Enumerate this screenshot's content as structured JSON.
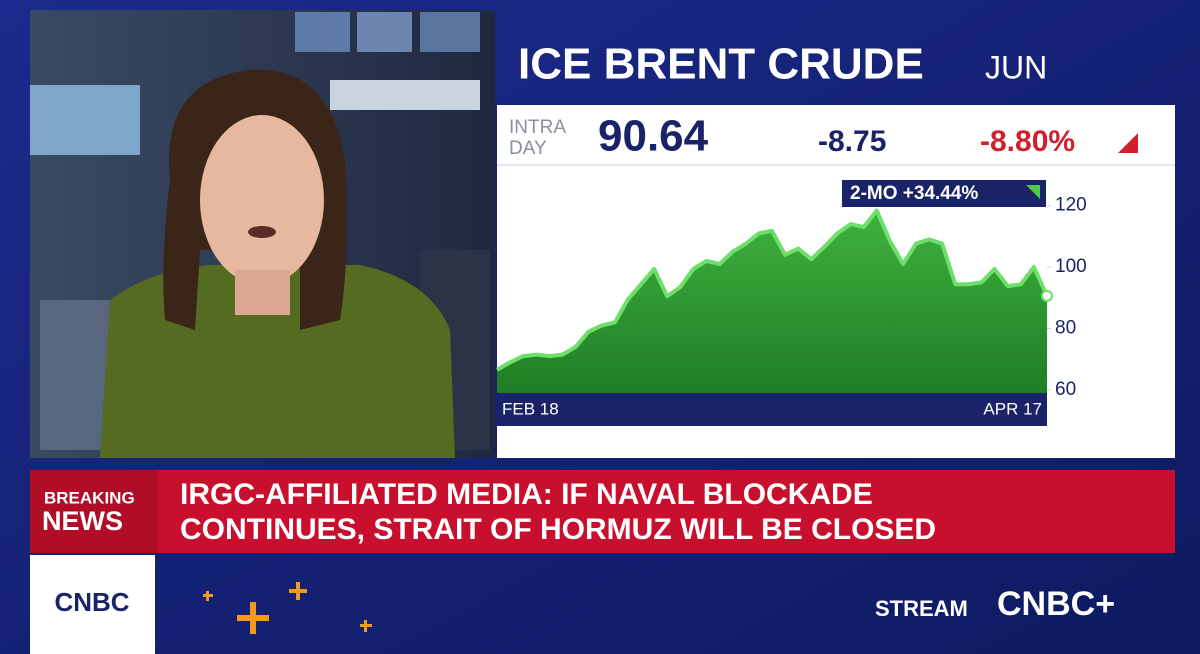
{
  "header": {
    "title": "ICE BRENT CRUDE",
    "contract": "JUN"
  },
  "quote": {
    "label_line1": "INTRA",
    "label_line2": "DAY",
    "price": "90.64",
    "change": "-8.75",
    "percent_change": "-8.80%"
  },
  "chart_data": {
    "type": "area",
    "annotation": "2-MO +34.44%",
    "line_color": "#6ee06a",
    "fill_color": "#2f9c32",
    "categories": [
      "FEB 18",
      null,
      null,
      null,
      null,
      null,
      null,
      null,
      null,
      null,
      null,
      null,
      null,
      null,
      null,
      null,
      null,
      null,
      null,
      null,
      null,
      null,
      null,
      null,
      null,
      null,
      null,
      null,
      null,
      null,
      null,
      null,
      null,
      null,
      null,
      null,
      null,
      null,
      null,
      null,
      null,
      null,
      "APR 17"
    ],
    "values": [
      66.6,
      69,
      71,
      71.5,
      71,
      71.5,
      74,
      79,
      81,
      82,
      89.5,
      94.4,
      99.4,
      90.5,
      93.5,
      99.4,
      102,
      101,
      105,
      107.6,
      111,
      111.8,
      104,
      106,
      102.6,
      106.6,
      111,
      114,
      113,
      118.4,
      108.5,
      101,
      107.6,
      109,
      107.6,
      94.4,
      94.4,
      95,
      99.4,
      93.8,
      94.4,
      100,
      90.64
    ],
    "ylim": [
      59,
      129
    ],
    "yticks": [
      60,
      80,
      100,
      120
    ]
  },
  "breaking": {
    "label_line1": "BREAKING",
    "label_line2": "NEWS",
    "headline_line1": "IRGC-AFFILIATED MEDIA: IF NAVAL BLOCKADE",
    "headline_line2": "CONTINUES, STRAIT OF HORMUZ WILL BE CLOSED"
  },
  "footer": {
    "network": "CNBC",
    "stream_label": "STREAM",
    "stream_brand": "CNBC+"
  }
}
